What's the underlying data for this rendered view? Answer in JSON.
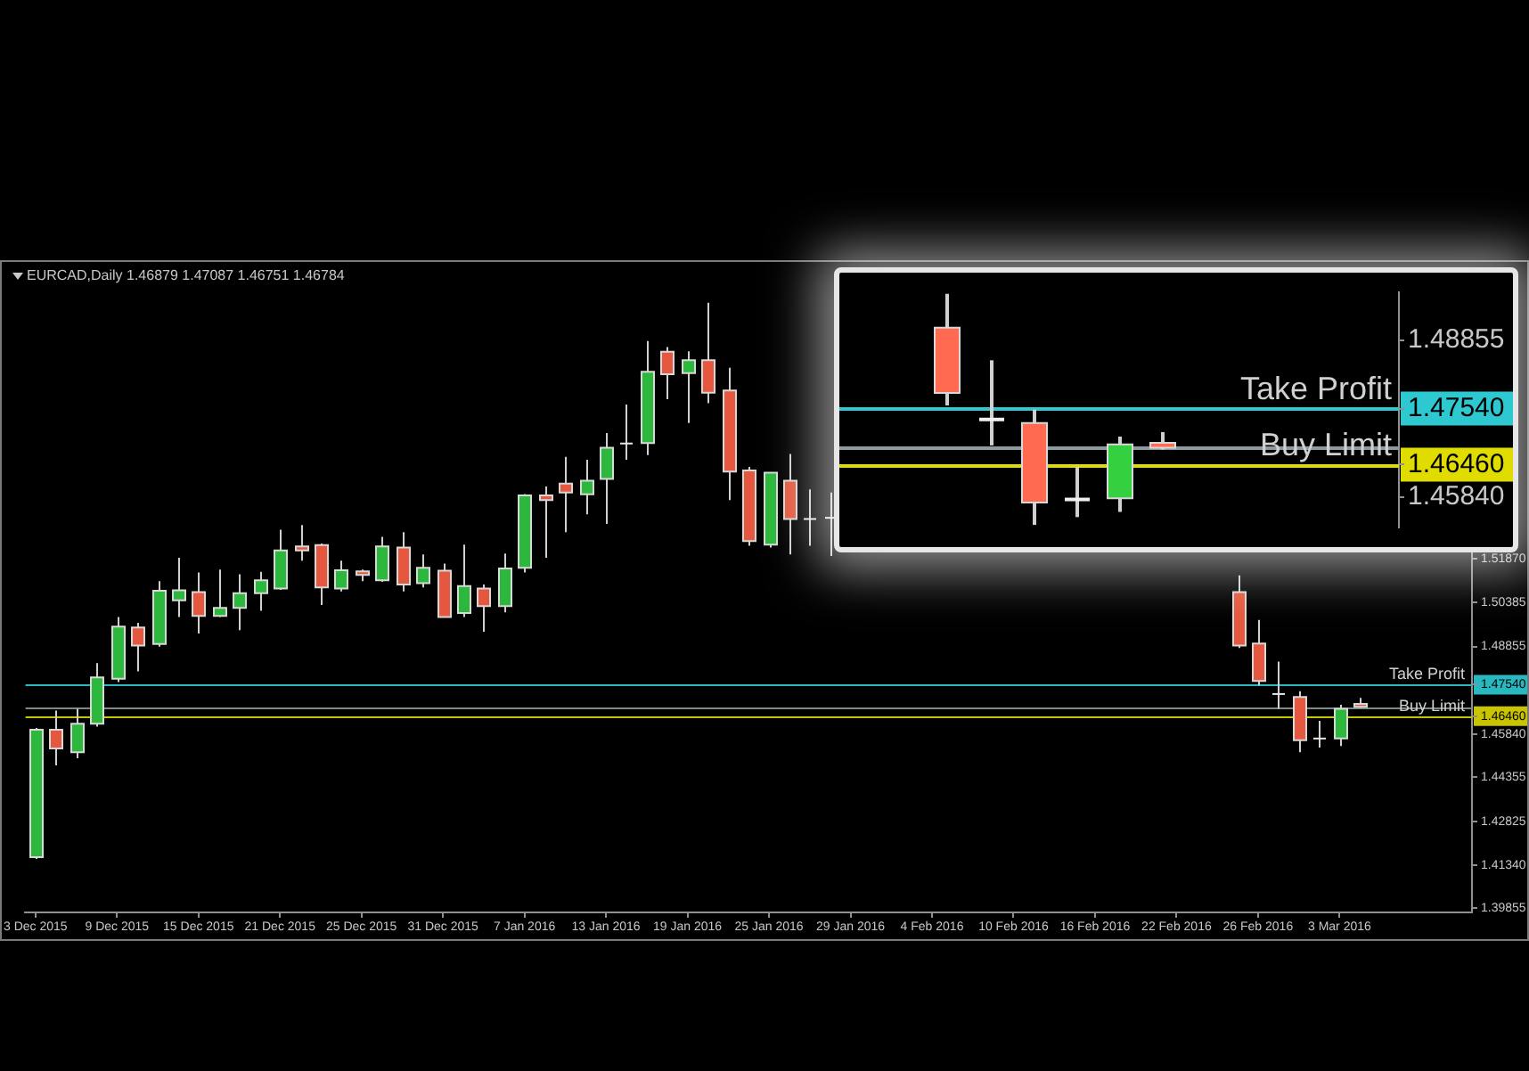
{
  "chart_data": [
    {
      "type": "candlestick",
      "title": "EURCAD,Daily  1.46879 1.47087 1.46751 1.46784",
      "categories": [
        "3 Dec 2015",
        null,
        null,
        null,
        "9 Dec 2015",
        null,
        null,
        null,
        "15 Dec 2015",
        null,
        null,
        null,
        "21 Dec 2015",
        null,
        null,
        null,
        "25 Dec 2015",
        null,
        null,
        null,
        "31 Dec 2015",
        null,
        null,
        null,
        "7 Jan 2016",
        null,
        null,
        null,
        "13 Jan 2016",
        null,
        null,
        null,
        "19 Jan 2016",
        null,
        null,
        null,
        "25 Jan 2016",
        null,
        null,
        null,
        "29 Jan 2016",
        null,
        null,
        null,
        "4 Feb 2016",
        null,
        null,
        null,
        "10 Feb 2016",
        null,
        null,
        null,
        "16 Feb 2016",
        null,
        null,
        null,
        "22 Feb 2016",
        null,
        null,
        null,
        "26 Feb 2016",
        null,
        null,
        null,
        "3 Mar 2016",
        null,
        null,
        null,
        null,
        null,
        null
      ],
      "ohlc": [
        [
          1.4161,
          1.4605,
          1.4155,
          1.4599
        ],
        [
          1.4599,
          1.4665,
          1.4477,
          1.4535
        ],
        [
          1.4522,
          1.4671,
          1.4501,
          1.462
        ],
        [
          1.462,
          1.4828,
          1.461,
          1.4779
        ],
        [
          1.4775,
          1.4987,
          1.4763,
          1.4954
        ],
        [
          1.4951,
          1.4967,
          1.48,
          1.4889
        ],
        [
          1.4894,
          1.511,
          1.4885,
          1.5077
        ],
        [
          1.5044,
          1.5191,
          1.4987,
          1.5079
        ],
        [
          1.5073,
          1.514,
          1.493,
          1.4991
        ],
        [
          1.4991,
          1.515,
          1.4987,
          1.5018
        ],
        [
          1.5018,
          1.5134,
          1.4942,
          1.5069
        ],
        [
          1.5069,
          1.5142,
          1.5008,
          1.5113
        ],
        [
          1.5085,
          1.5287,
          1.508,
          1.5216
        ],
        [
          1.523,
          1.5303,
          1.5181,
          1.5216
        ],
        [
          1.5234,
          1.524,
          1.5028,
          1.5089
        ],
        [
          1.5085,
          1.5181,
          1.5075,
          1.5148
        ],
        [
          1.5144,
          1.515,
          1.511,
          1.5132
        ],
        [
          1.5113,
          1.5263,
          1.5108,
          1.523
        ],
        [
          1.5226,
          1.5279,
          1.5075,
          1.5099
        ],
        [
          1.5103,
          1.5202,
          1.5089,
          1.5156
        ],
        [
          1.5146,
          1.5171,
          1.4985,
          1.4987
        ],
        [
          1.5001,
          1.5236,
          1.4987,
          1.5093
        ],
        [
          1.5085,
          1.5099,
          1.4936,
          1.5024
        ],
        [
          1.5024,
          1.5205,
          1.5003,
          1.5154
        ],
        [
          1.5156,
          1.541,
          1.514,
          1.5405
        ],
        [
          1.5405,
          1.5436,
          1.5191,
          1.5389
        ],
        [
          1.5446,
          1.5538,
          1.5279,
          1.5415
        ],
        [
          1.5409,
          1.5528,
          1.534,
          1.5456
        ],
        [
          1.5462,
          1.562,
          1.5307,
          1.5569
        ],
        [
          1.5584,
          1.5718,
          1.5528,
          1.5584
        ],
        [
          1.5585,
          1.5936,
          1.5544,
          1.583
        ],
        [
          1.5899,
          1.5915,
          1.5736,
          1.5822
        ],
        [
          1.5826,
          1.5901,
          1.5654,
          1.587
        ],
        [
          1.587,
          1.6068,
          1.5722,
          1.5758
        ],
        [
          1.5766,
          1.5844,
          1.5389,
          1.5487
        ],
        [
          1.5491,
          1.5503,
          1.5232,
          1.5248
        ],
        [
          1.5236,
          1.5485,
          1.5226,
          1.5483
        ],
        [
          1.5456,
          1.5548,
          1.5202,
          1.5324
        ],
        [
          1.5324,
          1.5426,
          1.5232,
          1.5324
        ],
        [
          1.5328,
          1.5415,
          1.5197,
          1.5328
        ],
        null,
        null,
        null,
        null,
        null,
        null,
        null,
        null,
        null,
        null,
        null,
        null,
        null,
        null,
        null,
        null,
        null,
        null,
        null,
        [
          1.5073,
          1.513,
          1.488,
          1.4889
        ],
        [
          1.4896,
          1.4977,
          1.4752,
          1.4767
        ],
        [
          1.4722,
          1.4834,
          1.4671,
          1.4722
        ],
        [
          1.4712,
          1.4732,
          1.4522,
          1.4563
        ],
        [
          1.4569,
          1.463,
          1.4538,
          1.4569
        ],
        [
          1.4569,
          1.4685,
          1.4543,
          1.4671
        ],
        [
          1.46879,
          1.47087,
          1.46751,
          1.46784
        ],
        null,
        null,
        null,
        null,
        null
      ],
      "colors": [
        "#2cb83c",
        "#e5583f",
        "#2cb83c",
        "#2cb83c",
        "#2cb83c",
        "#e5583f",
        "#2cb83c",
        "#2cb83c",
        "#e5583f",
        "#2cb83c",
        "#2cb83c",
        "#2cb83c",
        "#2cb83c",
        "#e5583f",
        "#e5583f",
        "#2cb83c",
        "#e5583f",
        "#2cb83c",
        "#e5583f",
        "#2cb83c",
        "#e5583f",
        "#2cb83c",
        "#e5583f",
        "#2cb83c",
        "#2cb83c",
        "#e5583f",
        "#e5583f",
        "#2cb83c",
        "#2cb83c",
        "#e8e8e8",
        "#2cb83c",
        "#e5583f",
        "#2cb83c",
        "#e5583f",
        "#e5583f",
        "#e5583f",
        "#2cb83c",
        "#e5583f",
        "#e8e8e8",
        "#e8e8e8",
        null,
        null,
        null,
        null,
        null,
        null,
        null,
        null,
        null,
        null,
        null,
        null,
        null,
        null,
        null,
        null,
        null,
        null,
        null,
        "#e5583f",
        "#e5583f",
        "#e8e8e8",
        "#e5583f",
        "#e8e8e8",
        "#2cb83c",
        "#e5583f",
        null,
        null,
        null,
        null,
        null
      ],
      "ylim": [
        1.3971,
        1.617
      ],
      "yticks": [
        {
          "value": 1.39855,
          "label": "1.39855"
        },
        {
          "value": 1.4134,
          "label": "1.41340"
        },
        {
          "value": 1.42825,
          "label": "1.42825"
        },
        {
          "value": 1.44355,
          "label": "1.44355"
        },
        {
          "value": 1.4584,
          "label": "1.45840"
        },
        {
          "value": 1.4646,
          "label": "1.46460"
        },
        {
          "value": 1.4754,
          "label": "1.47540"
        },
        {
          "value": 1.48855,
          "label": "1.48855"
        },
        {
          "value": 1.50385,
          "label": "1.50385"
        },
        {
          "value": 1.5187,
          "label": "1.51870"
        }
      ],
      "ref_lines": [
        {
          "axis": "y",
          "value": 1.4754,
          "label": "Take Profit",
          "color": "#2ab8c0"
        },
        {
          "axis": "y",
          "value": 1.46786,
          "color": "#7a8a8a"
        },
        {
          "axis": "y",
          "value": 1.4646,
          "label": "Buy Limit",
          "color": "#c8c400"
        }
      ]
    },
    {
      "type": "candlestick",
      "categories": [
        null,
        null,
        null,
        null,
        null,
        null,
        null,
        null,
        null,
        null,
        null,
        null,
        null
      ],
      "ohlc": [
        null,
        null,
        [
          1.491,
          1.4975,
          1.476,
          1.4784
        ],
        [
          1.4733,
          1.4847,
          1.4683,
          1.4733
        ],
        [
          1.4726,
          1.4752,
          1.453,
          1.4573
        ],
        [
          1.4579,
          1.4642,
          1.4545,
          1.4579
        ],
        [
          1.4581,
          1.47,
          1.4555,
          1.4685
        ],
        [
          1.46879,
          1.47087,
          1.46751,
          1.46784
        ],
        null,
        null,
        null,
        null,
        null
      ],
      "colors": [
        null,
        null,
        "#ff6a50",
        "#f0f0f0",
        "#ff6a50",
        "#f0f0f0",
        "#34d040",
        "#ff6a50",
        null,
        null,
        null,
        null,
        null
      ],
      "ylim": [
        1.4525,
        1.4978
      ],
      "yticks": [
        {
          "value": 1.4584,
          "label": "1.45840"
        },
        {
          "value": 1.4646,
          "label": "1.46460"
        },
        {
          "value": 1.4754,
          "label": "1.47540"
        },
        {
          "value": 1.48855,
          "label": "1.48855"
        }
      ],
      "ref_lines": [
        {
          "axis": "y",
          "value": 1.4754,
          "label": "Take Profit",
          "color": "#2ec8d0"
        },
        {
          "axis": "y",
          "value": 1.46786,
          "color": "#8a9aa0"
        },
        {
          "axis": "y",
          "value": 1.4646,
          "label": "Buy Limit",
          "color": "#e0dc00"
        }
      ],
      "tick_labels": "y"
    }
  ]
}
